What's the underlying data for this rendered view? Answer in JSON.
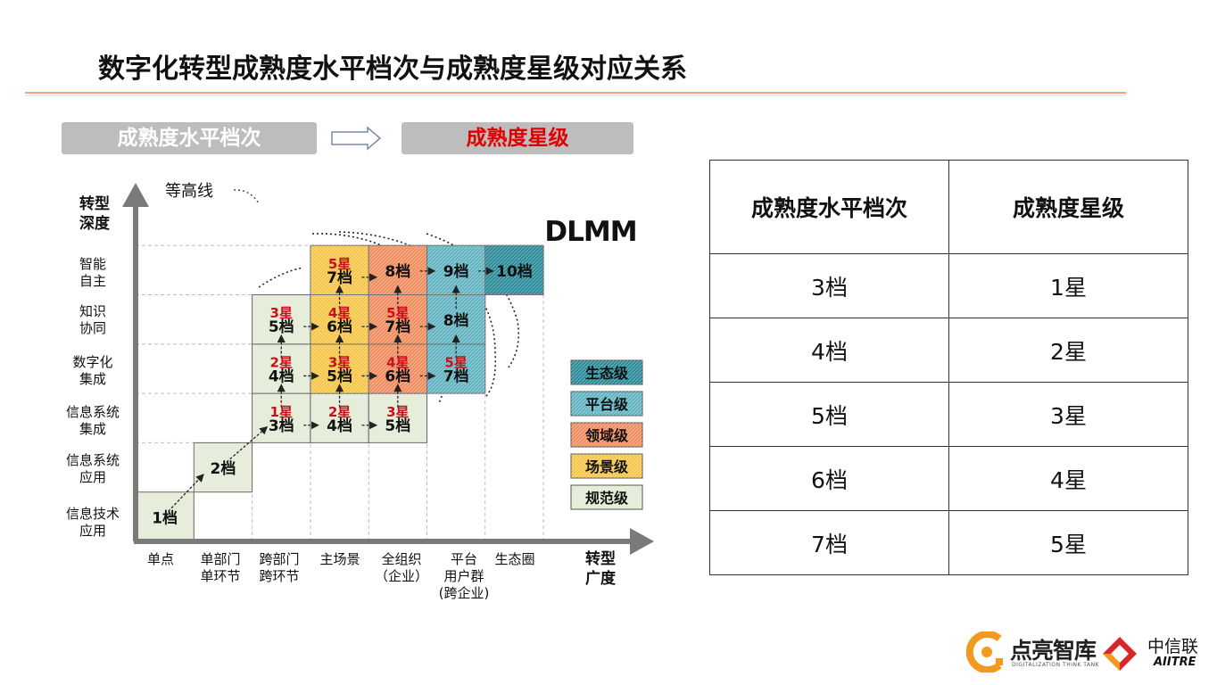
{
  "title": "数字化转型成熟度水平档次与成熟度星级对应关系",
  "banner_left": "成熟度水平档次",
  "banner_right": "成熟度星级",
  "diagram": {
    "brand": "DLMM",
    "contour_label": "等高线",
    "y_axis_label": [
      "转型",
      "深度"
    ],
    "x_axis_label": [
      "转型",
      "广度"
    ],
    "y_levels": [
      [
        "智能",
        "自主"
      ],
      [
        "知识",
        "协同"
      ],
      [
        "数字化",
        "集成"
      ],
      [
        "信息系统",
        "集成"
      ],
      [
        "信息系统",
        "应用"
      ],
      [
        "信息技术",
        "应用"
      ]
    ],
    "x_categories": [
      [
        "单点"
      ],
      [
        "单部门",
        "单环节"
      ],
      [
        "跨部门",
        "跨环节"
      ],
      [
        "主场景"
      ],
      [
        "全组织",
        "（企业）"
      ],
      [
        "平台",
        "用户群",
        "(跨企业)"
      ],
      [
        "生态圈"
      ]
    ],
    "legend": [
      {
        "label": "生态级",
        "color": "#2a8a99"
      },
      {
        "label": "平台级",
        "color": "#62b3c2"
      },
      {
        "label": "领域级",
        "color": "#f08d5f"
      },
      {
        "label": "场景级",
        "color": "#f6c648"
      },
      {
        "label": "规范级",
        "color": "#e6eedb"
      }
    ],
    "cells": [
      {
        "col": 0,
        "row": 0,
        "grade": "1档",
        "star": "",
        "tier": 4
      },
      {
        "col": 1,
        "row": 1,
        "grade": "2档",
        "star": "",
        "tier": 4
      },
      {
        "col": 2,
        "row": 2,
        "grade": "3档",
        "star": "1星",
        "tier": 4
      },
      {
        "col": 2,
        "row": 3,
        "grade": "4档",
        "star": "2星",
        "tier": 4
      },
      {
        "col": 2,
        "row": 4,
        "grade": "5档",
        "star": "3星",
        "tier": 4
      },
      {
        "col": 3,
        "row": 2,
        "grade": "4档",
        "star": "2星",
        "tier": 4
      },
      {
        "col": 3,
        "row": 3,
        "grade": "5档",
        "star": "3星",
        "tier": 3
      },
      {
        "col": 3,
        "row": 4,
        "grade": "6档",
        "star": "4星",
        "tier": 3
      },
      {
        "col": 3,
        "row": 5,
        "grade": "7档",
        "star": "5星",
        "tier": 3
      },
      {
        "col": 4,
        "row": 2,
        "grade": "5档",
        "star": "3星",
        "tier": 4
      },
      {
        "col": 4,
        "row": 3,
        "grade": "6档",
        "star": "4星",
        "tier": 2
      },
      {
        "col": 4,
        "row": 4,
        "grade": "7档",
        "star": "5星",
        "tier": 2
      },
      {
        "col": 4,
        "row": 5,
        "grade": "8档",
        "star": "",
        "tier": 2
      },
      {
        "col": 5,
        "row": 3,
        "grade": "7档",
        "star": "5星",
        "tier": 1
      },
      {
        "col": 5,
        "row": 4,
        "grade": "8档",
        "star": "",
        "tier": 1
      },
      {
        "col": 5,
        "row": 5,
        "grade": "9档",
        "star": "",
        "tier": 1
      },
      {
        "col": 6,
        "row": 5,
        "grade": "10档",
        "star": "",
        "tier": 0
      }
    ]
  },
  "mapping_table": {
    "headers": [
      "成熟度水平档次",
      "成熟度星级"
    ],
    "rows": [
      [
        "3档",
        "1星"
      ],
      [
        "4档",
        "2星"
      ],
      [
        "5档",
        "3星"
      ],
      [
        "6档",
        "4星"
      ],
      [
        "7档",
        "5星"
      ]
    ]
  },
  "footer": {
    "logo1_text": "点亮智库",
    "logo1_sub": "DIGITALIZATION THINK TANK",
    "logo2_text": "中信联",
    "logo2_sub": "AIITRE"
  }
}
